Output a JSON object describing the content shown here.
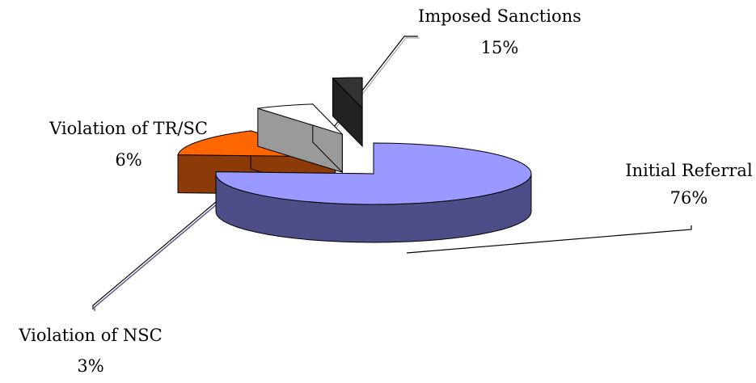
{
  "chart_data": {
    "type": "pie",
    "title": "",
    "exploded": true,
    "three_d": true,
    "slices": [
      {
        "label": "Initial Referral",
        "pct_label": "76%",
        "value": 76,
        "top_color": "#9999ff",
        "side_color": "#4d4d88"
      },
      {
        "label": "Imposed Sanctions",
        "pct_label": "15%",
        "value": 15,
        "top_color": "#ff6600",
        "side_color": "#8c3a08"
      },
      {
        "label": "Violation of TR/SC",
        "pct_label": "6%",
        "value": 6,
        "top_color": "#ffffff",
        "side_color": "#9a9a9a"
      },
      {
        "label": "Violation of NSC",
        "pct_label": "3%",
        "value": 3,
        "top_color": "#333333",
        "side_color": "#222222"
      }
    ]
  }
}
